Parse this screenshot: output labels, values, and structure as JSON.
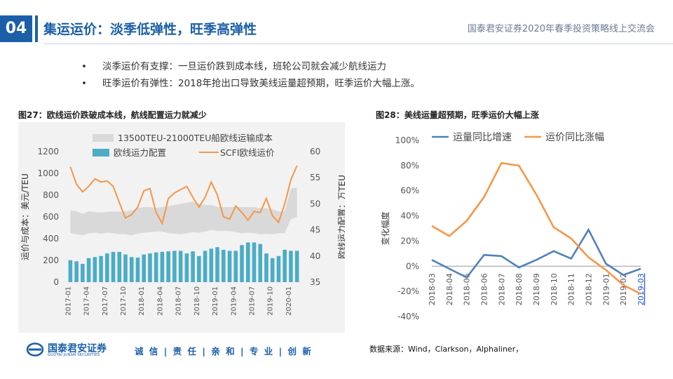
{
  "header": {
    "section_number": "04",
    "title": "集运运价：淡季低弹性，旺季高弹性",
    "subtitle": "国泰君安证券2020年春季投资策略线上交流会"
  },
  "bullets": [
    {
      "marker": "•",
      "text": "淡季运价有支撑：一旦运价跌到成本线，班轮公司就会减少航线运力"
    },
    {
      "marker": "•",
      "text": "旺季运价有弹性：2018年抢出口导致美线运量超预期，旺季运价大幅上涨。"
    }
  ],
  "chart_left_caption": "图27：欧线运价跌破成本线，航线配置运力就减少",
  "chart_right_caption": "图28：美线运量超预期，旺季运价大幅上涨",
  "footer": {
    "logo_cn": "国泰君安证券",
    "logo_en": "GUOTAI JUNAN SECURITIES",
    "slogan": "诚 信 | 责 任 | 亲 和 | 专 业 | 创 新",
    "source": "数据来源：Wind，Clarkson，Alphaliner，"
  },
  "colors": {
    "brand": "#1b5fa8",
    "band": "#d9d9d9",
    "bar": "#4bacc6",
    "line_orange": "#f79646",
    "line_blue": "#4f81bd"
  },
  "chart_data": [
    {
      "type": "bar",
      "legend": [
        "13500TEU-21000TEU船欧线运输成本",
        "欧线运力配置",
        "SCFI欧线运价"
      ],
      "ylabel": "运价与成本：美元/TEU",
      "y2label": "欧线运力配置：万TEU",
      "ylim": [
        0,
        1200
      ],
      "y2lim": [
        35,
        60
      ],
      "yticks": [
        "0",
        "200",
        "400",
        "600",
        "800",
        "1000",
        "1200"
      ],
      "y2ticks": [
        "35",
        "40",
        "45",
        "50",
        "55",
        "60"
      ],
      "xtick_labels": [
        "2017-01",
        "2017-04",
        "2017-07",
        "2017-10",
        "2018-01",
        "2018-04",
        "2018-07",
        "2018-10",
        "2019-01",
        "2019-04",
        "2019-07",
        "2019-10",
        "2020-01"
      ],
      "x": [
        "2017-01",
        "2017-02",
        "2017-03",
        "2017-04",
        "2017-05",
        "2017-06",
        "2017-07",
        "2017-08",
        "2017-09",
        "2017-10",
        "2017-11",
        "2017-12",
        "2018-01",
        "2018-02",
        "2018-03",
        "2018-04",
        "2018-05",
        "2018-06",
        "2018-07",
        "2018-08",
        "2018-09",
        "2018-10",
        "2018-11",
        "2018-12",
        "2019-01",
        "2019-02",
        "2019-03",
        "2019-04",
        "2019-05",
        "2019-06",
        "2019-07",
        "2019-08",
        "2019-09",
        "2019-10",
        "2019-11",
        "2019-12",
        "2020-01",
        "2020-02"
      ],
      "series": [
        {
          "name": "13500TEU-21000TEU船欧线运输成本",
          "kind": "band",
          "axis": "left",
          "low": [
            450,
            440,
            430,
            450,
            455,
            445,
            455,
            450,
            440,
            440,
            430,
            445,
            455,
            460,
            465,
            465,
            450,
            445,
            440,
            450,
            460,
            455,
            465,
            480,
            470,
            470,
            470,
            460,
            450,
            455,
            450,
            440,
            445,
            440,
            450,
            450,
            580,
            600
          ],
          "high": [
            660,
            650,
            630,
            650,
            645,
            640,
            645,
            650,
            650,
            650,
            660,
            680,
            690,
            690,
            680,
            690,
            700,
            710,
            720,
            730,
            740,
            720,
            710,
            710,
            690,
            690,
            690,
            690,
            690,
            690,
            690,
            680,
            680,
            670,
            650,
            650,
            860,
            870
          ]
        },
        {
          "name": "欧线运力配置",
          "kind": "bar",
          "axis": "right",
          "values": [
            39.2,
            39.0,
            38.5,
            39.6,
            39.8,
            40.0,
            40.5,
            40.8,
            40.8,
            40.3,
            39.8,
            39.7,
            40.3,
            40.5,
            40.7,
            40.8,
            40.9,
            41.0,
            41.0,
            40.5,
            40.9,
            40.0,
            41.0,
            41.4,
            41.7,
            41.2,
            41.0,
            41.0,
            42.1,
            42.6,
            42.6,
            42.3,
            40.5,
            39.6,
            40.0,
            41.2,
            41.0,
            41.0
          ]
        },
        {
          "name": "SCFI欧线运价",
          "kind": "line",
          "axis": "left",
          "values": [
            1060,
            900,
            830,
            880,
            950,
            920,
            930,
            880,
            730,
            590,
            620,
            690,
            840,
            860,
            640,
            540,
            770,
            820,
            850,
            880,
            780,
            690,
            780,
            920,
            800,
            600,
            580,
            700,
            640,
            570,
            650,
            640,
            770,
            610,
            550,
            720,
            940,
            1070
          ]
        }
      ]
    },
    {
      "type": "line",
      "legend": [
        "运量同比增速",
        "运价同比涨幅"
      ],
      "ylabel": "变化幅度",
      "ylim": [
        -40,
        100
      ],
      "yticks": [
        "-40%",
        "-20%",
        "0%",
        "20%",
        "40%",
        "60%",
        "80%",
        "100%"
      ],
      "x": [
        "2018-03",
        "2018-04",
        "2018-05",
        "2018-06",
        "2018-07",
        "2018-08",
        "2018-09",
        "2018-10",
        "2018-11",
        "2018-12",
        "2019-01",
        "2019-02",
        "2019-03"
      ],
      "series": [
        {
          "name": "运量同比增速",
          "values": [
            5,
            -2,
            -9,
            9,
            8,
            -1,
            5,
            12,
            6,
            29,
            2,
            -7,
            -2
          ]
        },
        {
          "name": "运价同比涨幅",
          "values": [
            32,
            24,
            36,
            55,
            82,
            80,
            57,
            31,
            22,
            7,
            -3,
            -15,
            -22
          ]
        }
      ]
    }
  ]
}
